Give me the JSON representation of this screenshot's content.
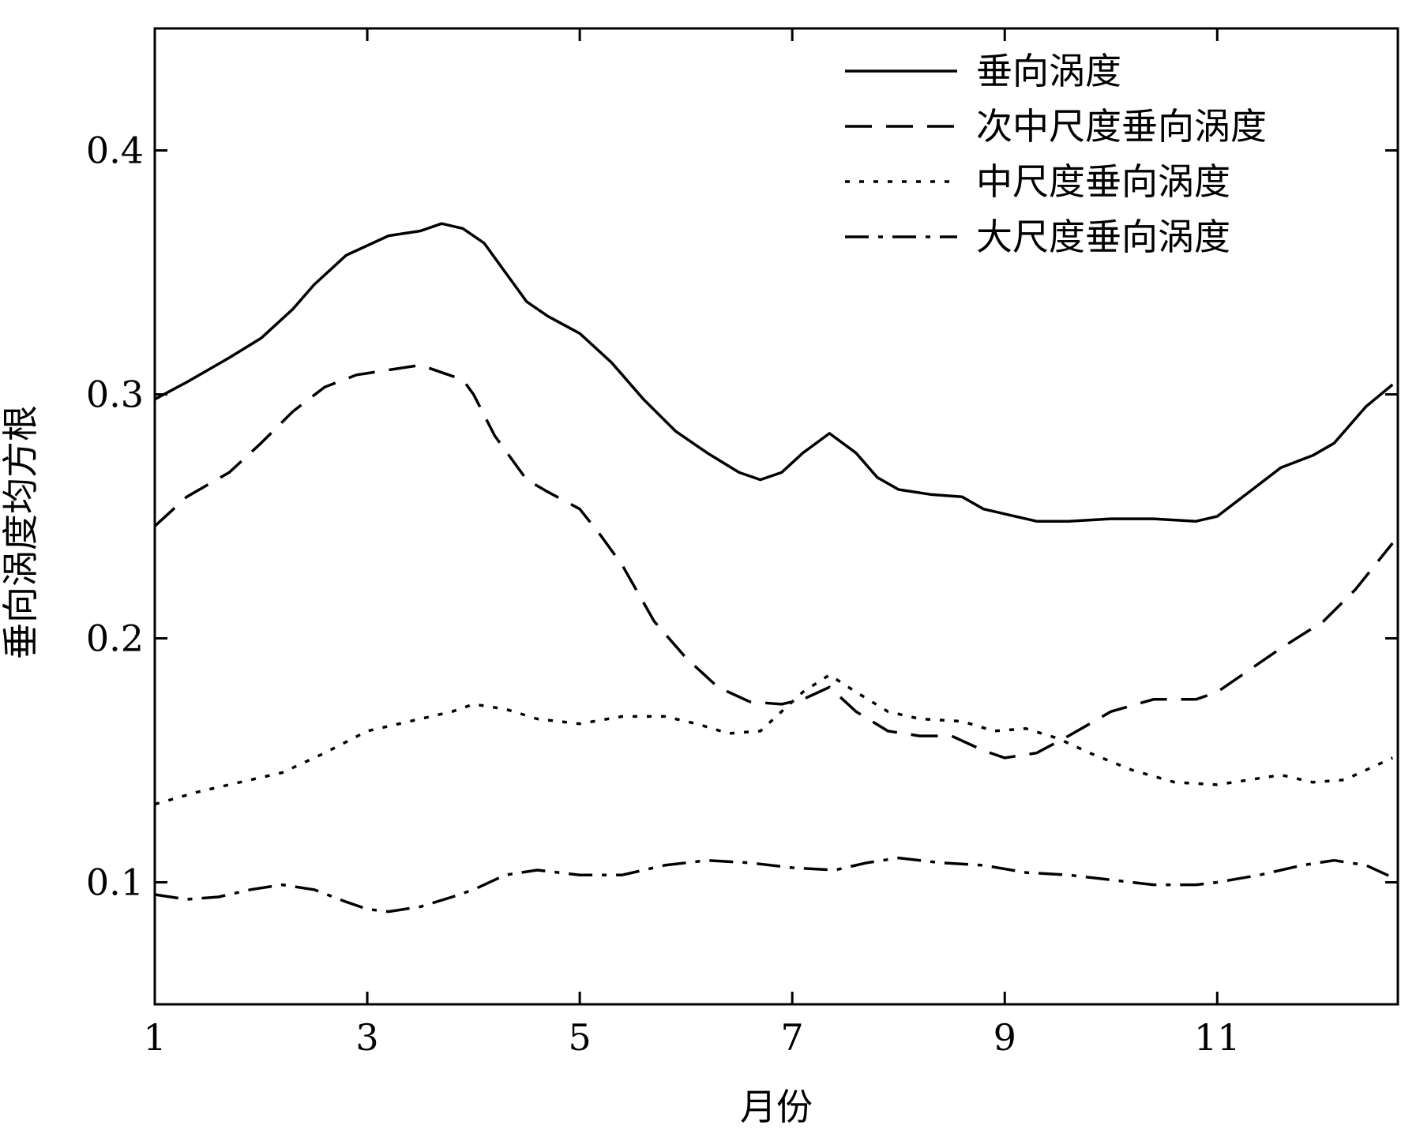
{
  "chart_data": {
    "type": "line",
    "title": "",
    "xlabel": "月份",
    "ylabel": "垂向涡度均方根",
    "xlim": [
      1,
      12.7
    ],
    "ylim": [
      0.05,
      0.45
    ],
    "xticks": [
      1,
      3,
      5,
      7,
      9,
      11
    ],
    "yticks": [
      0.1,
      0.2,
      0.3,
      0.4
    ],
    "xtick_labels": [
      "1",
      "3",
      "5",
      "7",
      "9",
      "11"
    ],
    "ytick_labels": [
      "0.1",
      "0.2",
      "0.3",
      "0.4"
    ],
    "grid": false,
    "legend": {
      "position": "top-right"
    },
    "series": [
      {
        "name": "垂向涡度",
        "line_style": "solid",
        "color": "#000000",
        "x": [
          1,
          1.3,
          1.7,
          2.0,
          2.3,
          2.5,
          2.8,
          3.0,
          3.2,
          3.5,
          3.7,
          3.9,
          4.1,
          4.3,
          4.5,
          4.7,
          5.0,
          5.3,
          5.6,
          5.9,
          6.2,
          6.5,
          6.7,
          6.9,
          7.1,
          7.35,
          7.6,
          7.8,
          8.0,
          8.3,
          8.6,
          8.8,
          9.0,
          9.3,
          9.6,
          10.0,
          10.4,
          10.8,
          11.0,
          11.3,
          11.6,
          11.9,
          12.1,
          12.4,
          12.65
        ],
        "y": [
          0.298,
          0.305,
          0.315,
          0.323,
          0.335,
          0.345,
          0.357,
          0.361,
          0.365,
          0.367,
          0.37,
          0.368,
          0.362,
          0.35,
          0.338,
          0.332,
          0.325,
          0.313,
          0.298,
          0.285,
          0.276,
          0.268,
          0.265,
          0.268,
          0.276,
          0.284,
          0.276,
          0.266,
          0.261,
          0.259,
          0.258,
          0.253,
          0.251,
          0.248,
          0.248,
          0.249,
          0.249,
          0.248,
          0.25,
          0.26,
          0.27,
          0.275,
          0.28,
          0.295,
          0.304
        ]
      },
      {
        "name": "次中尺度垂向涡度",
        "line_style": "dashed",
        "color": "#000000",
        "x": [
          1,
          1.3,
          1.7,
          2.0,
          2.3,
          2.6,
          2.9,
          3.2,
          3.5,
          3.7,
          3.9,
          4.0,
          4.2,
          4.5,
          4.7,
          5.0,
          5.2,
          5.4,
          5.7,
          6.0,
          6.3,
          6.6,
          6.9,
          7.1,
          7.35,
          7.6,
          7.9,
          8.2,
          8.5,
          8.8,
          9.0,
          9.3,
          9.6,
          10.0,
          10.4,
          10.8,
          11.0,
          11.3,
          11.6,
          12.0,
          12.3,
          12.65
        ],
        "y": [
          0.246,
          0.258,
          0.268,
          0.28,
          0.293,
          0.303,
          0.308,
          0.31,
          0.312,
          0.309,
          0.306,
          0.3,
          0.283,
          0.265,
          0.26,
          0.253,
          0.242,
          0.23,
          0.207,
          0.192,
          0.18,
          0.174,
          0.173,
          0.175,
          0.18,
          0.17,
          0.162,
          0.16,
          0.16,
          0.154,
          0.151,
          0.153,
          0.16,
          0.17,
          0.175,
          0.175,
          0.178,
          0.187,
          0.196,
          0.207,
          0.22,
          0.239
        ]
      },
      {
        "name": "中尺度垂向涡度",
        "line_style": "dotted",
        "color": "#000000",
        "x": [
          1,
          1.4,
          1.8,
          2.2,
          2.6,
          3.0,
          3.4,
          3.8,
          4.0,
          4.3,
          4.6,
          5.0,
          5.4,
          5.8,
          6.1,
          6.4,
          6.7,
          6.9,
          7.1,
          7.35,
          7.6,
          7.9,
          8.2,
          8.6,
          8.9,
          9.2,
          9.5,
          9.8,
          10.2,
          10.6,
          11.0,
          11.3,
          11.6,
          11.9,
          12.2,
          12.65
        ],
        "y": [
          0.132,
          0.137,
          0.141,
          0.145,
          0.153,
          0.162,
          0.166,
          0.17,
          0.173,
          0.171,
          0.167,
          0.165,
          0.168,
          0.168,
          0.165,
          0.161,
          0.162,
          0.17,
          0.178,
          0.185,
          0.178,
          0.17,
          0.167,
          0.166,
          0.162,
          0.163,
          0.159,
          0.153,
          0.146,
          0.141,
          0.14,
          0.142,
          0.144,
          0.141,
          0.142,
          0.151
        ]
      },
      {
        "name": "大尺度垂向涡度",
        "line_style": "dashdot",
        "color": "#000000",
        "x": [
          1,
          1.3,
          1.6,
          1.9,
          2.2,
          2.5,
          2.8,
          3.0,
          3.2,
          3.5,
          3.8,
          4.0,
          4.3,
          4.6,
          5.0,
          5.4,
          5.8,
          6.2,
          6.6,
          7.0,
          7.4,
          7.7,
          8.0,
          8.4,
          8.8,
          9.2,
          9.6,
          10.0,
          10.4,
          10.8,
          11.0,
          11.4,
          11.8,
          12.1,
          12.4,
          12.65
        ],
        "y": [
          0.095,
          0.093,
          0.094,
          0.097,
          0.099,
          0.097,
          0.092,
          0.089,
          0.088,
          0.09,
          0.094,
          0.097,
          0.103,
          0.105,
          0.103,
          0.103,
          0.107,
          0.109,
          0.108,
          0.106,
          0.105,
          0.108,
          0.11,
          0.108,
          0.107,
          0.104,
          0.103,
          0.101,
          0.099,
          0.099,
          0.1,
          0.103,
          0.107,
          0.109,
          0.107,
          0.102
        ]
      }
    ]
  }
}
